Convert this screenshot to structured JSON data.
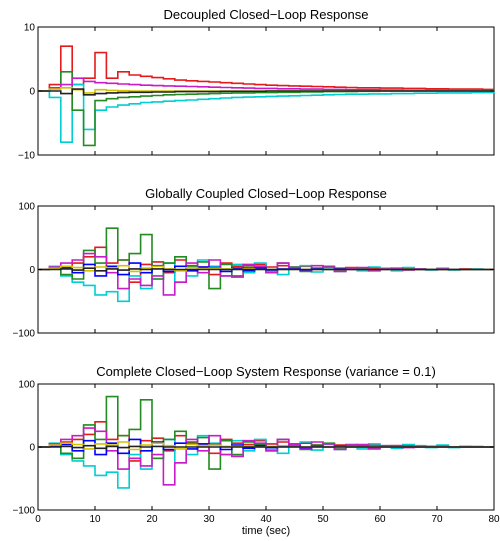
{
  "chart_data": [
    {
      "type": "line",
      "step": true,
      "title": "Decoupled Closed−Loop Response",
      "xlim": [
        0,
        80
      ],
      "ylim": [
        -10,
        10
      ],
      "yticks": [
        {
          "value": -10,
          "label": "−10"
        },
        {
          "value": 0,
          "label": "0"
        },
        {
          "value": 10,
          "label": "10"
        }
      ],
      "xticks": [],
      "xticks_minor": [
        0,
        10,
        20,
        30,
        40,
        50,
        60,
        70,
        80
      ],
      "xlabel": "",
      "series": [
        {
          "color": "#e41a1c",
          "values": [
            0,
            1,
            7,
            1,
            2,
            6,
            2,
            3,
            2.5,
            2.3,
            2.1,
            1.9,
            1.7,
            1.6,
            1.5,
            1.4,
            1.3,
            1.2,
            1.1,
            1.0,
            0.9,
            0.85,
            0.8,
            0.75,
            0.7,
            0.65,
            0.6,
            0.55,
            0.5,
            0.5,
            0.45,
            0.45,
            0.4,
            0.4,
            0.35,
            0.35,
            0.3,
            0.3,
            0.3,
            0.25,
            0.25
          ]
        },
        {
          "color": "#00ced1",
          "values": [
            0,
            -1,
            -8,
            1,
            -6,
            -3,
            -2.5,
            -2.2,
            -2,
            -1.8,
            -1.7,
            -1.6,
            -1.5,
            -1.4,
            -1.3,
            -1.2,
            -1.1,
            -1.0,
            -0.95,
            -0.9,
            -0.85,
            -0.8,
            -0.75,
            -0.7,
            -0.65,
            -0.6,
            -0.55,
            -0.5,
            -0.5,
            -0.45,
            -0.45,
            -0.4,
            -0.4,
            -0.35,
            -0.35,
            -0.3,
            -0.3,
            -0.3,
            -0.25,
            -0.25,
            -0.2
          ]
        },
        {
          "color": "#228b22",
          "values": [
            0,
            0.5,
            3,
            -3,
            -8.5,
            -1.5,
            -1.2,
            -1,
            -0.9,
            -0.8,
            -0.7,
            -0.6,
            -0.55,
            -0.5,
            -0.45,
            -0.4,
            -0.35,
            -0.3,
            -0.3,
            -0.25,
            -0.25,
            -0.2,
            -0.2,
            -0.15,
            -0.15,
            -0.1,
            -0.1,
            -0.1,
            -0.05,
            -0.05,
            0,
            0,
            0,
            0,
            0,
            0,
            0,
            0,
            0,
            0,
            0
          ]
        },
        {
          "color": "#c71cc7",
          "values": [
            0,
            0.5,
            1,
            2,
            1.5,
            1.3,
            1.2,
            1.1,
            1.0,
            0.9,
            0.85,
            0.8,
            0.75,
            0.7,
            0.65,
            0.6,
            0.55,
            0.5,
            0.45,
            0.4,
            0.4,
            0.35,
            0.35,
            0.3,
            0.3,
            0.25,
            0.25,
            0.2,
            0.2,
            0.2,
            0.15,
            0.15,
            0.1,
            0.1,
            0.1,
            0.1,
            0.05,
            0.05,
            0.05,
            0,
            0
          ]
        },
        {
          "color": "#d4c200",
          "values": [
            0,
            0.3,
            0.5,
            0.2,
            -0.3,
            0.2,
            0.1,
            0.05,
            0,
            0,
            0,
            0,
            0,
            0,
            0,
            0,
            0,
            0,
            0,
            0,
            0,
            0,
            0,
            0,
            0,
            0,
            0,
            0,
            0,
            0,
            0,
            0,
            0,
            0,
            0,
            0,
            0,
            0,
            0,
            0,
            0
          ]
        },
        {
          "color": "#222222",
          "values": [
            0,
            0,
            -0.4,
            0.3,
            -0.6,
            -0.4,
            -0.3,
            -0.25,
            -0.2,
            -0.2,
            -0.15,
            -0.15,
            -0.1,
            -0.1,
            -0.1,
            -0.1,
            -0.05,
            -0.05,
            -0.05,
            -0.05,
            0,
            0,
            0,
            0,
            0,
            0,
            0,
            0,
            0,
            0,
            0,
            0,
            0,
            0,
            0,
            0,
            0,
            0,
            0,
            0,
            0
          ]
        }
      ]
    },
    {
      "type": "line",
      "step": true,
      "title": "Globally Coupled Closed−Loop Response",
      "xlim": [
        0,
        80
      ],
      "ylim": [
        -100,
        100
      ],
      "yticks": [
        {
          "value": -100,
          "label": "−100"
        },
        {
          "value": 0,
          "label": "0"
        },
        {
          "value": 100,
          "label": "100"
        }
      ],
      "xticks": [],
      "xticks_minor": [
        0,
        10,
        20,
        30,
        40,
        50,
        60,
        70,
        80
      ],
      "xlabel": "",
      "series": [
        {
          "color": "#e41a1c",
          "values": [
            0,
            2,
            5,
            10,
            20,
            35,
            10,
            15,
            -20,
            8,
            12,
            -5,
            15,
            6,
            4,
            -8,
            10,
            5,
            3,
            8,
            4,
            6,
            3,
            5,
            2,
            4,
            2,
            3,
            1,
            2,
            1,
            1,
            2,
            1,
            0,
            1,
            0,
            1,
            0,
            0,
            0
          ]
        },
        {
          "color": "#00ced1",
          "values": [
            0,
            5,
            -10,
            -20,
            -25,
            -40,
            -35,
            -50,
            -10,
            -30,
            -15,
            10,
            -20,
            -10,
            15,
            5,
            -10,
            8,
            -5,
            10,
            -3,
            -8,
            4,
            6,
            -4,
            3,
            -3,
            2,
            -2,
            4,
            2,
            -2,
            3,
            1,
            -1,
            2,
            -1,
            0,
            1,
            0,
            0
          ]
        },
        {
          "color": "#228b22",
          "values": [
            0,
            3,
            -8,
            -15,
            30,
            10,
            65,
            15,
            25,
            55,
            -15,
            10,
            20,
            5,
            12,
            -30,
            8,
            -10,
            6,
            3,
            -5,
            10,
            4,
            -3,
            2,
            5,
            -2,
            1,
            2,
            -1,
            1,
            0,
            1,
            0,
            0,
            0,
            0,
            0,
            0,
            0,
            0
          ]
        },
        {
          "color": "#c71cc7",
          "values": [
            0,
            4,
            10,
            15,
            25,
            20,
            -5,
            -30,
            -15,
            -25,
            -10,
            -40,
            -20,
            10,
            -5,
            15,
            -10,
            -12,
            8,
            5,
            -5,
            10,
            3,
            -2,
            6,
            4,
            -3,
            2,
            3,
            -2,
            1,
            2,
            -1,
            1,
            0,
            1,
            0,
            0,
            0,
            0,
            0
          ]
        },
        {
          "color": "#0000ff",
          "values": [
            0,
            2,
            3,
            -5,
            8,
            -10,
            5,
            -8,
            10,
            -5,
            6,
            -3,
            5,
            -2,
            4,
            3,
            -3,
            2,
            -2,
            2,
            -1,
            1,
            1,
            -1,
            1,
            0,
            1,
            0,
            0,
            0,
            0,
            0,
            0,
            0,
            0,
            0,
            0,
            0,
            0,
            0,
            0
          ]
        },
        {
          "color": "#d4c200",
          "values": [
            0,
            2,
            5,
            3,
            -2,
            4,
            2,
            6,
            -3,
            2,
            5,
            1,
            -2,
            3,
            1,
            2,
            1,
            0,
            1,
            0,
            0,
            0,
            0,
            0,
            0,
            0,
            0,
            0,
            0,
            0,
            0,
            0,
            0,
            0,
            0,
            0,
            0,
            0,
            0,
            0,
            0
          ]
        },
        {
          "color": "#222222",
          "values": [
            0,
            0,
            1,
            -1,
            2,
            -2,
            1,
            -1,
            1,
            0,
            1,
            0,
            0,
            0,
            0,
            0,
            0,
            0,
            0,
            0,
            0,
            0,
            0,
            0,
            0,
            0,
            0,
            0,
            0,
            0,
            0,
            0,
            0,
            0,
            0,
            0,
            0,
            0,
            0,
            0,
            0
          ]
        }
      ]
    },
    {
      "type": "line",
      "step": true,
      "title": "Complete Closed−Loop System Response (variance = 0.1)",
      "xlim": [
        0,
        80
      ],
      "ylim": [
        -100,
        100
      ],
      "yticks": [
        {
          "value": -100,
          "label": "−100"
        },
        {
          "value": 0,
          "label": "0"
        },
        {
          "value": 100,
          "label": "100"
        }
      ],
      "xticks": [
        {
          "value": 0,
          "label": "0"
        },
        {
          "value": 10,
          "label": "10"
        },
        {
          "value": 20,
          "label": "20"
        },
        {
          "value": 30,
          "label": "30"
        },
        {
          "value": 40,
          "label": "40"
        },
        {
          "value": 50,
          "label": "50"
        },
        {
          "value": 60,
          "label": "60"
        },
        {
          "value": 70,
          "label": "70"
        },
        {
          "value": 80,
          "label": "80"
        }
      ],
      "xticks_minor": [],
      "xlabel": "time (sec)",
      "series": [
        {
          "color": "#e41a1c",
          "values": [
            0,
            2,
            8,
            12,
            20,
            40,
            12,
            18,
            -22,
            10,
            14,
            -6,
            18,
            8,
            5,
            -10,
            12,
            6,
            4,
            10,
            5,
            8,
            4,
            6,
            3,
            5,
            3,
            4,
            2,
            3,
            1,
            2,
            2,
            1,
            1,
            1,
            0,
            1,
            0,
            0,
            0
          ]
        },
        {
          "color": "#00ced1",
          "values": [
            0,
            6,
            -12,
            -22,
            -30,
            -45,
            -40,
            -65,
            -12,
            -35,
            -18,
            12,
            -25,
            -12,
            18,
            6,
            -12,
            10,
            -6,
            12,
            -4,
            -10,
            5,
            8,
            -5,
            4,
            -4,
            3,
            -3,
            5,
            2,
            -2,
            4,
            2,
            -1,
            3,
            -1,
            1,
            1,
            0,
            0
          ]
        },
        {
          "color": "#228b22",
          "values": [
            0,
            4,
            -10,
            -18,
            35,
            12,
            80,
            18,
            28,
            75,
            -18,
            12,
            25,
            6,
            15,
            -35,
            10,
            -12,
            8,
            4,
            -6,
            12,
            5,
            -4,
            3,
            6,
            -3,
            2,
            3,
            -2,
            1,
            1,
            1,
            0,
            0,
            0,
            0,
            0,
            0,
            0,
            0
          ]
        },
        {
          "color": "#c71cc7",
          "values": [
            0,
            5,
            12,
            18,
            30,
            25,
            -6,
            -35,
            -18,
            -30,
            -12,
            -60,
            -25,
            12,
            -6,
            18,
            -12,
            -15,
            10,
            6,
            -6,
            12,
            4,
            -3,
            8,
            5,
            -4,
            3,
            4,
            -3,
            2,
            2,
            -1,
            1,
            1,
            1,
            0,
            0,
            0,
            0,
            0
          ]
        },
        {
          "color": "#0000ff",
          "values": [
            0,
            2,
            4,
            -6,
            10,
            -12,
            6,
            -10,
            12,
            -6,
            8,
            -4,
            6,
            -3,
            5,
            4,
            -4,
            3,
            -2,
            2,
            -1,
            1,
            1,
            -1,
            1,
            0,
            1,
            0,
            0,
            0,
            0,
            0,
            0,
            0,
            0,
            0,
            0,
            0,
            0,
            0,
            0
          ]
        },
        {
          "color": "#d4c200",
          "values": [
            0,
            3,
            6,
            4,
            -3,
            5,
            3,
            8,
            -4,
            3,
            6,
            2,
            -3,
            4,
            2,
            3,
            1,
            1,
            1,
            0,
            1,
            0,
            0,
            0,
            0,
            0,
            0,
            0,
            0,
            0,
            0,
            0,
            0,
            0,
            0,
            0,
            0,
            0,
            0,
            0,
            0
          ]
        },
        {
          "color": "#222222",
          "values": [
            0,
            0,
            1,
            -1,
            2,
            -2,
            1,
            -1,
            1,
            0,
            1,
            0,
            0,
            0,
            0,
            0,
            0,
            0,
            0,
            0,
            0,
            0,
            0,
            0,
            0,
            0,
            0,
            0,
            0,
            0,
            0,
            0,
            0,
            0,
            0,
            0,
            0,
            0,
            0,
            0,
            0
          ]
        }
      ]
    }
  ]
}
